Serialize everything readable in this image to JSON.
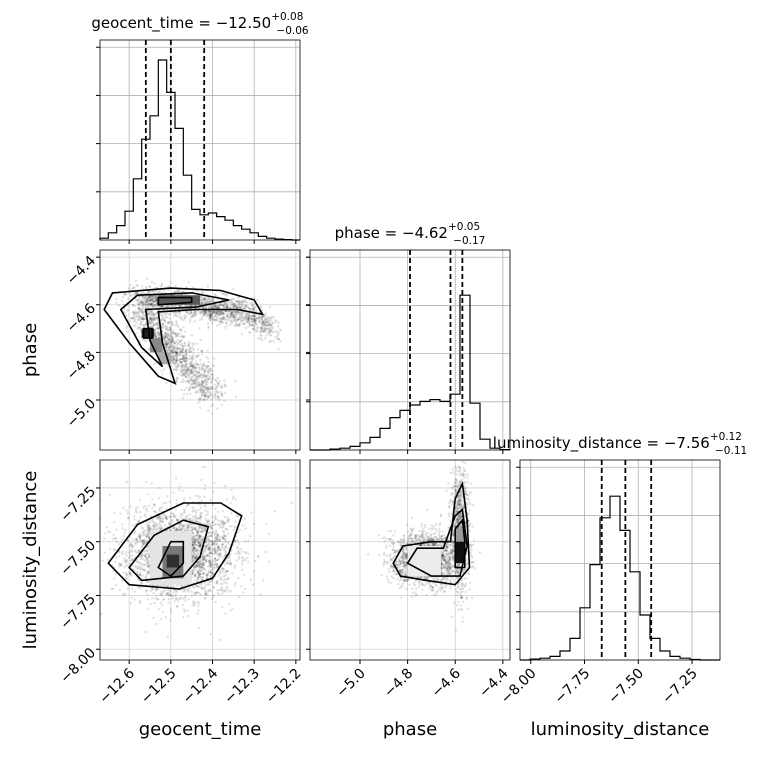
{
  "chart_data": {
    "type": "corner",
    "parameters": [
      {
        "name": "geocent_time",
        "axis_label": "geocent_time",
        "title_prefix": "geocent_time = ",
        "median": "−12.50",
        "plus": "+0.08",
        "minus": "−0.06",
        "range": [
          -12.67,
          -12.19
        ],
        "quantiles": [
          -12.56,
          -12.5,
          -12.42
        ],
        "ticks": [
          -12.6,
          -12.5,
          -12.4,
          -12.3,
          -12.2
        ],
        "tick_labels": [
          "−12.6",
          "−12.5",
          "−12.4",
          "−12.3",
          "−12.2"
        ],
        "hist_counts": [
          0.01,
          0.04,
          0.08,
          0.16,
          0.34,
          0.56,
          0.69,
          1.0,
          0.82,
          0.62,
          0.36,
          0.17,
          0.14,
          0.15,
          0.13,
          0.11,
          0.08,
          0.06,
          0.04,
          0.02,
          0.01,
          0.005,
          0.002,
          0.0
        ]
      },
      {
        "name": "phase",
        "axis_label": "phase",
        "title_prefix": "phase = ",
        "median": "−4.62",
        "plus": "+0.05",
        "minus": "−0.17",
        "range": [
          -5.21,
          -4.37
        ],
        "quantiles": [
          -4.79,
          -4.62,
          -4.57
        ],
        "ticks": [
          -5.0,
          -4.8,
          -4.6,
          -4.4
        ],
        "tick_labels": [
          "−5.0",
          "−4.8",
          "−4.6",
          "−4.4"
        ],
        "hist_counts": [
          0.0,
          0.0,
          0.005,
          0.01,
          0.02,
          0.04,
          0.07,
          0.12,
          0.18,
          0.22,
          0.25,
          0.27,
          0.28,
          0.27,
          0.31,
          0.86,
          0.26,
          0.06,
          0.01,
          0.002
        ]
      },
      {
        "name": "luminosity_distance",
        "axis_label": "luminosity_distance",
        "title_prefix": "luminosity_distance = ",
        "median": "−7.56",
        "plus": "+0.12",
        "minus": "−0.11",
        "range": [
          -8.05,
          -7.12
        ],
        "quantiles": [
          -7.67,
          -7.56,
          -7.44
        ],
        "ticks": [
          -8.0,
          -7.75,
          -7.5,
          -7.25
        ],
        "tick_labels": [
          "−8.00",
          "−7.75",
          "−7.50",
          "−7.25"
        ],
        "hist_counts": [
          0.0,
          0.005,
          0.01,
          0.02,
          0.05,
          0.12,
          0.29,
          0.53,
          0.79,
          0.91,
          0.72,
          0.49,
          0.25,
          0.12,
          0.05,
          0.02,
          0.01,
          0.003,
          0.0,
          0.0
        ]
      }
    ],
    "contour_levels": 3,
    "grid": true
  }
}
